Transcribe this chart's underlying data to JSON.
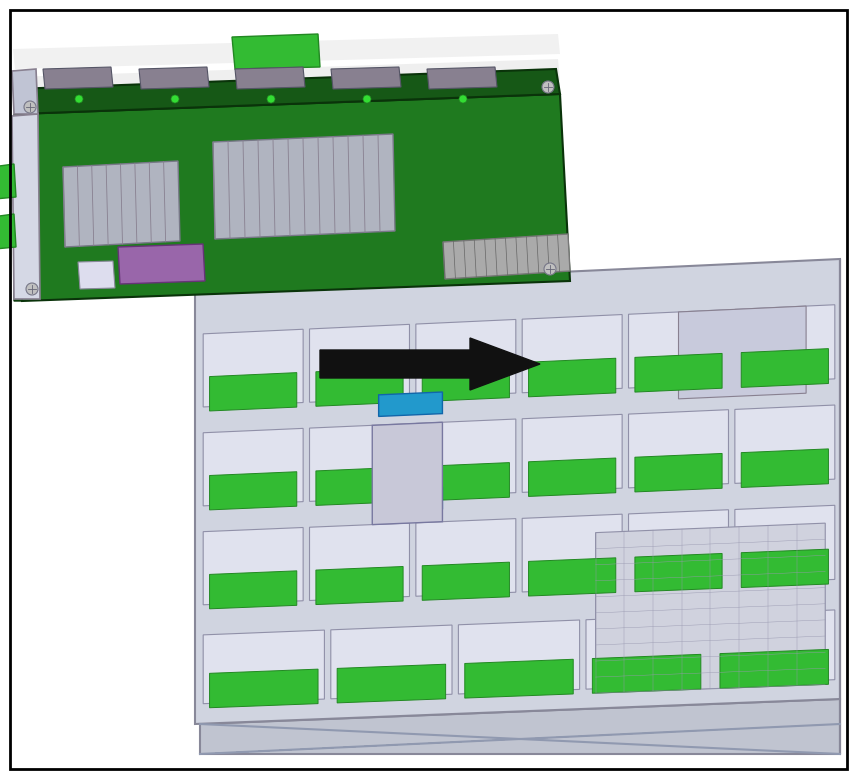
{
  "background_color": "#ffffff",
  "border_color": "#000000",
  "border_linewidth": 2,
  "server_body_color": "#d0d4e0",
  "server_top_color": "#c0c4d0",
  "server_side_color": "#b8bcc8",
  "server_edge_color": "#888899",
  "slot_face_color": "#e0e2ee",
  "slot_edge_color": "#9090a8",
  "green_tab_color": "#33bb33",
  "green_tab_edge": "#228822",
  "blue_mod_color": "#2299cc",
  "blue_mod_edge": "#1166aa",
  "board_top_color": "#1f7a1f",
  "board_front_color": "#165816",
  "board_right_color": "#0f440f",
  "board_edge_color": "#0a330a",
  "bracket_color": "#d5d8e5",
  "bracket_edge_color": "#888090",
  "heatsink_color": "#b0b4c0",
  "heatsink_edge_color": "#787888",
  "heatsink_fin_color": "#888090",
  "purple_chip_color": "#9966aa",
  "purple_chip_edge": "#663377",
  "connector_color": "#444444",
  "connector_edge": "#222222",
  "arrow_color": "#111111",
  "figsize": [
    8.57,
    7.79
  ],
  "dpi": 100
}
